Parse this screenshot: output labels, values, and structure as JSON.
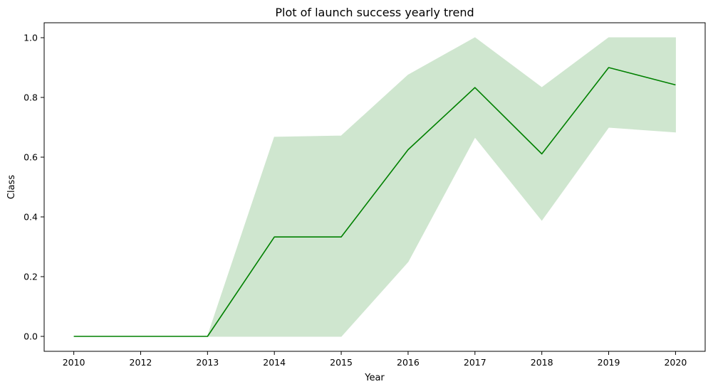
{
  "chart_data": {
    "type": "line",
    "title": "Plot of launch success yearly trend",
    "xlabel": "Year",
    "ylabel": "Class",
    "x_ticks": [
      "2010",
      "2012",
      "2013",
      "2014",
      "2015",
      "2016",
      "2017",
      "2018",
      "2019",
      "2020"
    ],
    "y_ticks": [
      "0.0",
      "0.2",
      "0.4",
      "0.6",
      "0.8",
      "1.0"
    ],
    "ylim": [
      -0.05,
      1.05
    ],
    "grid": false,
    "legend": "none",
    "series": [
      {
        "values": [
          0.0,
          0.0,
          0.0,
          0.333,
          0.333,
          0.625,
          0.833,
          0.611,
          0.9,
          0.842
        ],
        "ci_lower": [
          0.0,
          0.0,
          0.0,
          0.0,
          0.0,
          0.25,
          0.667,
          0.389,
          0.7,
          0.684
        ],
        "ci_upper": [
          0.0,
          0.0,
          0.0,
          0.667,
          0.671,
          0.875,
          1.0,
          0.833,
          1.0,
          1.0
        ],
        "color": "#008000",
        "band_color": "#cfe6cf"
      }
    ]
  }
}
